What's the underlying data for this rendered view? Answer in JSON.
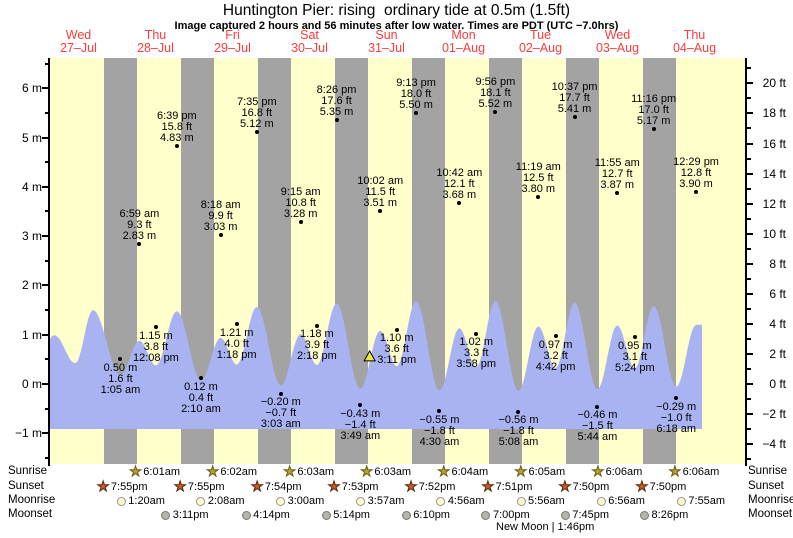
{
  "title": "Huntington Pier: rising  ordinary tide at 0.5m (1.5ft)",
  "subtitle": "Image captured 2 hours and 56 minutes after low water. Times are PDT (UTC −7.0hrs)",
  "days": [
    {
      "dow": "Wed",
      "date": "27–Jul"
    },
    {
      "dow": "Thu",
      "date": "28–Jul"
    },
    {
      "dow": "Fri",
      "date": "29–Jul"
    },
    {
      "dow": "Sat",
      "date": "30–Jul"
    },
    {
      "dow": "Sun",
      "date": "31–Jul"
    },
    {
      "dow": "Mon",
      "date": "01–Aug"
    },
    {
      "dow": "Tue",
      "date": "02–Aug"
    },
    {
      "dow": "Wed",
      "date": "03–Aug"
    },
    {
      "dow": "Thu",
      "date": "04–Aug"
    }
  ],
  "axes": {
    "left_labels": [
      {
        "text": "6 m",
        "value": 6
      },
      {
        "text": "5 m",
        "value": 5
      },
      {
        "text": "4 m",
        "value": 4
      },
      {
        "text": "3 m",
        "value": 3
      },
      {
        "text": "2 m",
        "value": 2
      },
      {
        "text": "1 m",
        "value": 1
      },
      {
        "text": "0 m",
        "value": 0
      },
      {
        "text": "−1 m",
        "value": -1
      }
    ],
    "right_labels": [
      {
        "text": "20 ft",
        "value": 20
      },
      {
        "text": "18 ft",
        "value": 18
      },
      {
        "text": "16 ft",
        "value": 16
      },
      {
        "text": "14 ft",
        "value": 14
      },
      {
        "text": "12 ft",
        "value": 12
      },
      {
        "text": "10 ft",
        "value": 10
      },
      {
        "text": "8 ft",
        "value": 8
      },
      {
        "text": "6 ft",
        "value": 6
      },
      {
        "text": "4 ft",
        "value": 4
      },
      {
        "text": "2 ft",
        "value": 2
      },
      {
        "text": "0 ft",
        "value": 0
      },
      {
        "text": "−2 ft",
        "value": -2
      },
      {
        "text": "−4 ft",
        "value": -4
      }
    ]
  },
  "chart_data": {
    "type": "area",
    "title": "Huntington Pier tide heights, 27-Jul to 04-Aug",
    "ylabel_left": "m",
    "ylabel_right": "ft",
    "ylim_m": [
      -1.6,
      6.6
    ],
    "current_marker": {
      "height_m": 0.5,
      "height_ft": 1.5,
      "day": 4,
      "hour": 6.75,
      "state": "rising"
    },
    "tide_events": [
      {
        "day": 1,
        "time": "1:05 am",
        "ft": "1.6 ft",
        "m": "0.50 m",
        "m_value": 0.5,
        "kind": "low"
      },
      {
        "day": 1,
        "time": "6:59 am",
        "ft": "9.3 ft",
        "m": "2.83 m",
        "m_value": 2.83,
        "kind": "high"
      },
      {
        "day": 1,
        "time": "12:08 pm",
        "ft": "3.8 ft",
        "m": "1.15 m",
        "m_value": 1.15,
        "kind": "low"
      },
      {
        "day": 1,
        "time": "6:39 pm",
        "ft": "15.8 ft",
        "m": "4.83 m",
        "m_value": 4.83,
        "kind": "high"
      },
      {
        "day": 2,
        "time": "2:10 am",
        "ft": "0.4 ft",
        "m": "0.12 m",
        "m_value": 0.12,
        "kind": "low"
      },
      {
        "day": 2,
        "time": "8:18 am",
        "ft": "9.9 ft",
        "m": "3.03 m",
        "m_value": 3.03,
        "kind": "high"
      },
      {
        "day": 2,
        "time": "1:18 pm",
        "ft": "4.0 ft",
        "m": "1.21 m",
        "m_value": 1.21,
        "kind": "low"
      },
      {
        "day": 2,
        "time": "7:35 pm",
        "ft": "16.8 ft",
        "m": "5.12 m",
        "m_value": 5.12,
        "kind": "high"
      },
      {
        "day": 3,
        "time": "3:03 am",
        "ft": "−0.7 ft",
        "m": "−0.20 m",
        "m_value": -0.2,
        "kind": "low"
      },
      {
        "day": 3,
        "time": "9:15 am",
        "ft": "10.8 ft",
        "m": "3.28 m",
        "m_value": 3.28,
        "kind": "high"
      },
      {
        "day": 3,
        "time": "2:18 pm",
        "ft": "3.9 ft",
        "m": "1.18 m",
        "m_value": 1.18,
        "kind": "low"
      },
      {
        "day": 3,
        "time": "8:26 pm",
        "ft": "17.6 ft",
        "m": "5.35 m",
        "m_value": 5.35,
        "kind": "high"
      },
      {
        "day": 4,
        "time": "3:49 am",
        "ft": "−1.4 ft",
        "m": "−0.43 m",
        "m_value": -0.43,
        "kind": "low"
      },
      {
        "day": 4,
        "time": "10:02 am",
        "ft": "11.5 ft",
        "m": "3.51 m",
        "m_value": 3.51,
        "kind": "high"
      },
      {
        "day": 4,
        "time": "3:11 pm",
        "ft": "3.6 ft",
        "m": "1.10 m",
        "m_value": 1.1,
        "kind": "low"
      },
      {
        "day": 4,
        "time": "9:13 pm",
        "ft": "18.0 ft",
        "m": "5.50 m",
        "m_value": 5.5,
        "kind": "high"
      },
      {
        "day": 5,
        "time": "4:30 am",
        "ft": "−1.8 ft",
        "m": "−0.55 m",
        "m_value": -0.55,
        "kind": "low"
      },
      {
        "day": 5,
        "time": "10:42 am",
        "ft": "12.1 ft",
        "m": "3.68 m",
        "m_value": 3.68,
        "kind": "high"
      },
      {
        "day": 5,
        "time": "3:58 pm",
        "ft": "3.3 ft",
        "m": "1.02 m",
        "m_value": 1.02,
        "kind": "low"
      },
      {
        "day": 5,
        "time": "9:56 pm",
        "ft": "18.1 ft",
        "m": "5.52 m",
        "m_value": 5.52,
        "kind": "high"
      },
      {
        "day": 6,
        "time": "5:08 am",
        "ft": "−1.8 ft",
        "m": "−0.56 m",
        "m_value": -0.56,
        "kind": "low"
      },
      {
        "day": 6,
        "time": "11:19 am",
        "ft": "12.5 ft",
        "m": "3.80 m",
        "m_value": 3.8,
        "kind": "high"
      },
      {
        "day": 6,
        "time": "4:42 pm",
        "ft": "3.2 ft",
        "m": "0.97 m",
        "m_value": 0.97,
        "kind": "low"
      },
      {
        "day": 6,
        "time": "10:37 pm",
        "ft": "17.7 ft",
        "m": "5.41 m",
        "m_value": 5.41,
        "kind": "high"
      },
      {
        "day": 7,
        "time": "5:44 am",
        "ft": "−1.5 ft",
        "m": "−0.46 m",
        "m_value": -0.46,
        "kind": "low"
      },
      {
        "day": 7,
        "time": "11:55 am",
        "ft": "12.7 ft",
        "m": "3.87 m",
        "m_value": 3.87,
        "kind": "high"
      },
      {
        "day": 7,
        "time": "5:24 pm",
        "ft": "3.1 ft",
        "m": "0.95 m",
        "m_value": 0.95,
        "kind": "low"
      },
      {
        "day": 7,
        "time": "11:16 pm",
        "ft": "17.0 ft",
        "m": "5.17 m",
        "m_value": 5.17,
        "kind": "high"
      },
      {
        "day": 8,
        "time": "6:18 am",
        "ft": "−1.0 ft",
        "m": "−0.29 m",
        "m_value": -0.29,
        "kind": "low"
      },
      {
        "day": 8,
        "time": "12:29 pm",
        "ft": "12.8 ft",
        "m": "3.90 m",
        "m_value": 3.9,
        "kind": "high"
      }
    ]
  },
  "astro": {
    "rows": [
      {
        "label": "Sunrise",
        "icon": "sunrise-star",
        "entries": [
          {
            "day": 1,
            "time": "6:01am"
          },
          {
            "day": 2,
            "time": "6:02am"
          },
          {
            "day": 3,
            "time": "6:03am"
          },
          {
            "day": 4,
            "time": "6:03am"
          },
          {
            "day": 5,
            "time": "6:04am"
          },
          {
            "day": 6,
            "time": "6:05am"
          },
          {
            "day": 7,
            "time": "6:06am"
          },
          {
            "day": 8,
            "time": "6:06am"
          }
        ]
      },
      {
        "label": "Sunset",
        "icon": "sunset-star",
        "entries": [
          {
            "day": 0,
            "time": "7:55pm"
          },
          {
            "day": 1,
            "time": "7:55pm"
          },
          {
            "day": 2,
            "time": "7:54pm"
          },
          {
            "day": 3,
            "time": "7:53pm"
          },
          {
            "day": 4,
            "time": "7:52pm"
          },
          {
            "day": 5,
            "time": "7:51pm"
          },
          {
            "day": 6,
            "time": "7:50pm"
          },
          {
            "day": 7,
            "time": "7:50pm"
          }
        ]
      },
      {
        "label": "Moonrise",
        "icon": "moonrise-circle",
        "entries": [
          {
            "day": 1,
            "time": "1:20am"
          },
          {
            "day": 2,
            "time": "2:08am"
          },
          {
            "day": 3,
            "time": "3:00am"
          },
          {
            "day": 4,
            "time": "3:57am"
          },
          {
            "day": 5,
            "time": "4:56am"
          },
          {
            "day": 6,
            "time": "5:56am"
          },
          {
            "day": 7,
            "time": "6:56am"
          },
          {
            "day": 8,
            "time": "7:55am"
          }
        ]
      },
      {
        "label": "Moonset",
        "icon": "moonset-circle",
        "entries": [
          {
            "day": 1,
            "time": "3:11pm"
          },
          {
            "day": 2,
            "time": "4:14pm"
          },
          {
            "day": 3,
            "time": "5:14pm"
          },
          {
            "day": 4,
            "time": "6:10pm"
          },
          {
            "day": 5,
            "time": "7:00pm"
          },
          {
            "day": 6,
            "time": "7:45pm"
          },
          {
            "day": 7,
            "time": "8:26pm"
          }
        ]
      }
    ],
    "moon_phase": "New Moon | 1:46pm"
  },
  "colors": {
    "day_band": "#ffffcc",
    "night_band": "#a3a3a3",
    "tide_fill": "#a9b3f2",
    "date_red": "#fa3c3c",
    "sunrise_star": "#b8a22e",
    "sunrise_star_stroke": "#6b5e1a",
    "sunset_star": "#cd5b28",
    "sunset_star_stroke": "#59280f",
    "moonrise_fill": "#ffffcc",
    "moonrise_stroke": "#909090",
    "moonset_fill": "#b4b4ae",
    "moonset_stroke": "#78786e",
    "marker_fill": "#e8e84a",
    "marker_stroke": "#000000"
  }
}
